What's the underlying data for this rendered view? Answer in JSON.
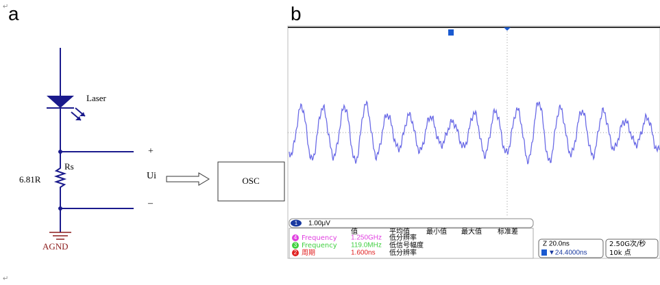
{
  "paragraph_marks": [
    "↵",
    "↵"
  ],
  "panel_a": {
    "label": "a",
    "laser": "Laser",
    "resistor_name": "Rs",
    "resistor_value": "6.81R",
    "voltage": "Ui",
    "plus": "+",
    "minus": "–",
    "ground": "AGND",
    "instrument": "OSC"
  },
  "panel_b": {
    "label": "b",
    "channel": {
      "number": "1",
      "scale": "1.00μV"
    },
    "table": {
      "headers": [
        "值",
        "平均值",
        "最小值",
        "最大值",
        "标准差"
      ],
      "rows": [
        {
          "channel": "4",
          "name": "Frequency",
          "value": "1.250GHz",
          "note": "低分辨率"
        },
        {
          "channel": "3",
          "name": "Frequency",
          "value": "119.0MHz",
          "note": "低信号幅度"
        },
        {
          "channel": "2",
          "name": "周期",
          "value": "1.600ns",
          "note": "低分辨率"
        }
      ]
    },
    "timebase": {
      "scale": "Z 20.0ns",
      "delay": "▼24.4000ns"
    },
    "acquisition": {
      "rate": "2.50G次/秒",
      "points": "10k 点"
    }
  }
}
